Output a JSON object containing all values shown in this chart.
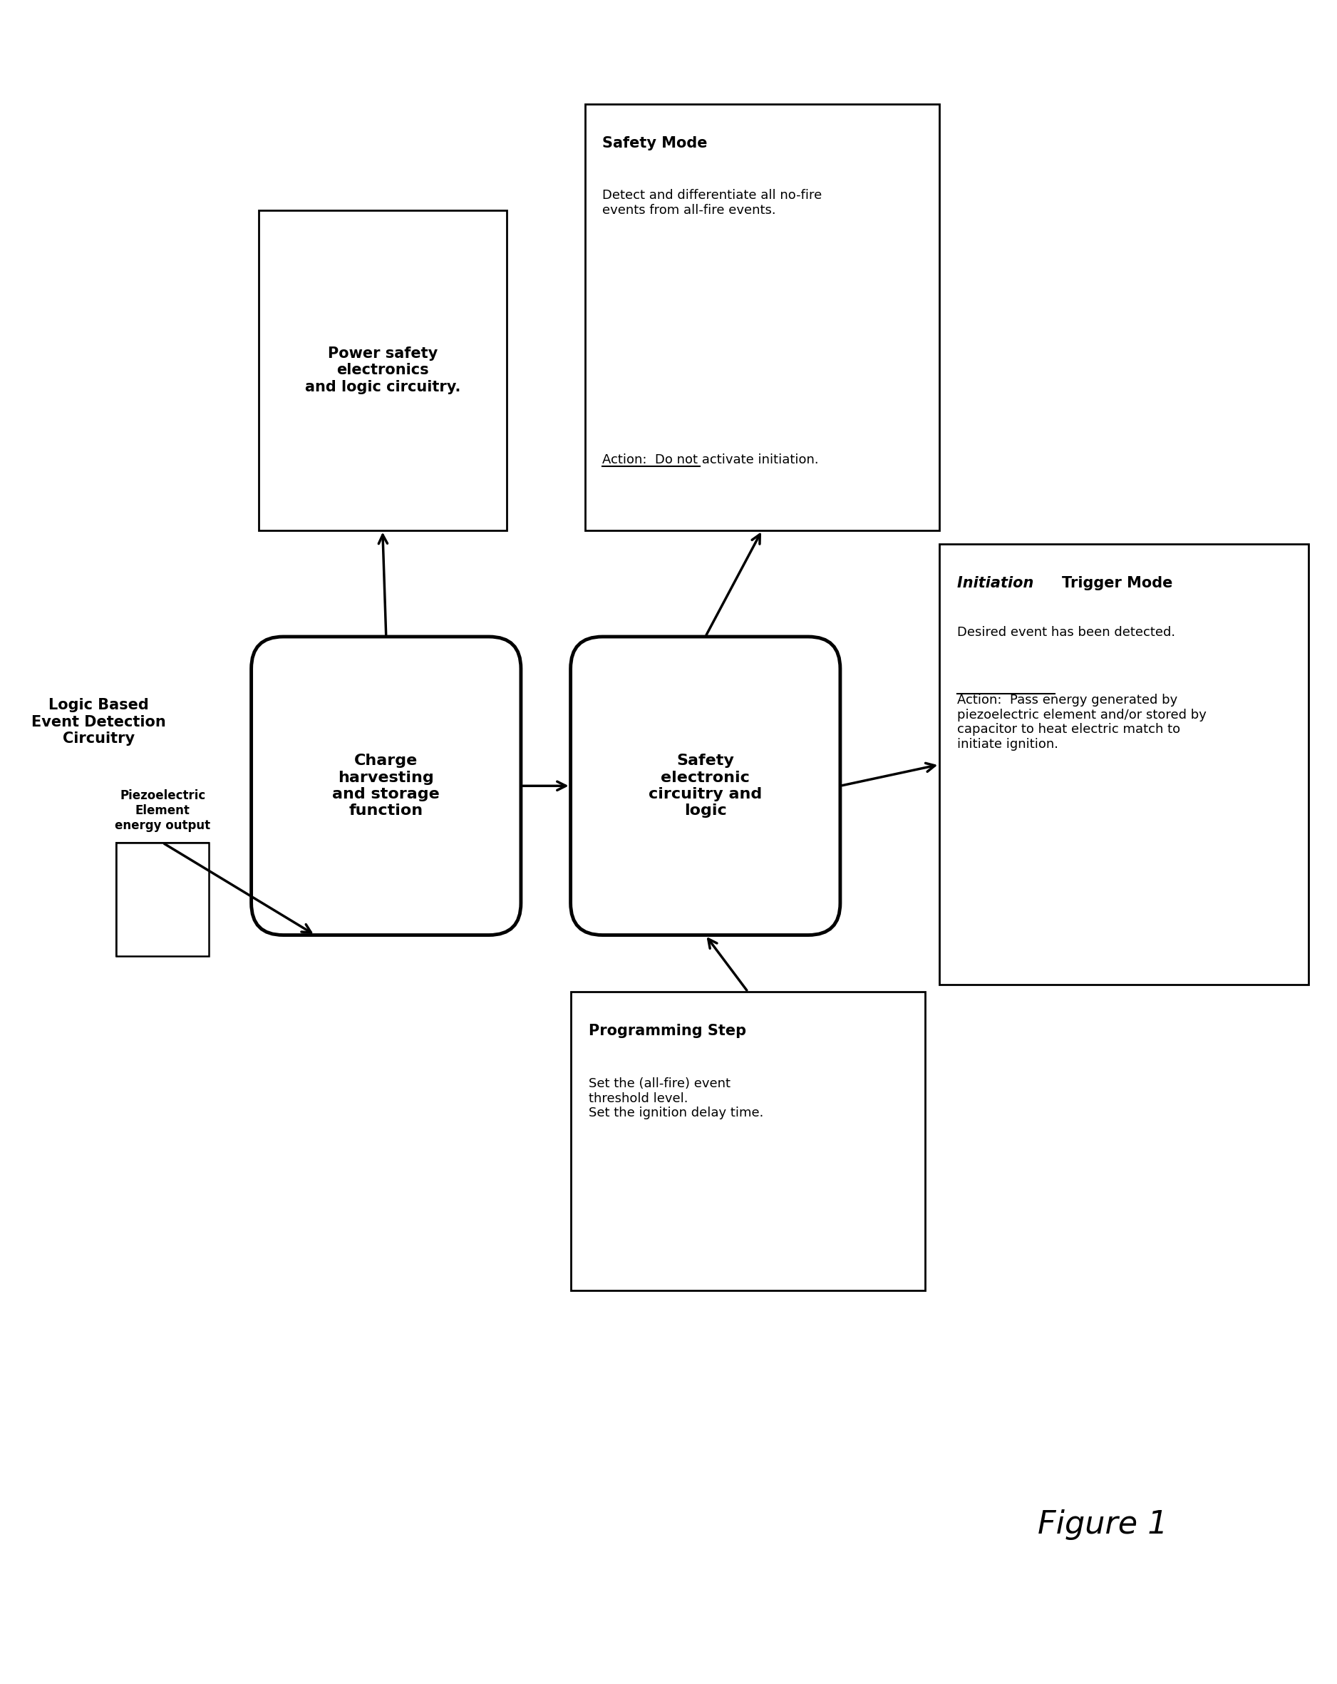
{
  "bg": "#ffffff",
  "fig_title": "Figure 1",
  "label_logic": "Logic Based\nEvent Detection\nCircuitry",
  "label_piezo": "Piezoelectric\nElement\nenergy output",
  "box_charge_text": "Charge\nharvesting\nand storage\nfunction",
  "box_safety_circ_text": "Safety\nelectronic\ncircuitry and\nlogic",
  "box_power_text": "Power safety\nelectronics\nand logic circuitry.",
  "box_safety_mode_title": "Safety Mode",
  "box_safety_mode_body": "Detect and differentiate all no-fire\nevents from all-fire events.",
  "box_safety_mode_action": "Action:  Do not activate initiation.",
  "box_prog_title": "Programming Step",
  "box_prog_body": "Set the (all-fire) event\nthreshold level.\nSet the ignition delay time.",
  "box_init_title_italic": "Initiation ",
  "box_init_title_bold": "Trigger Mode",
  "box_init_line1": "Desired event has been detected.",
  "box_init_action": "Action:  Pass energy generated by\npiezoelectric element and/or stored by\ncapacitor to heat electric match to\ninitiate ignition."
}
